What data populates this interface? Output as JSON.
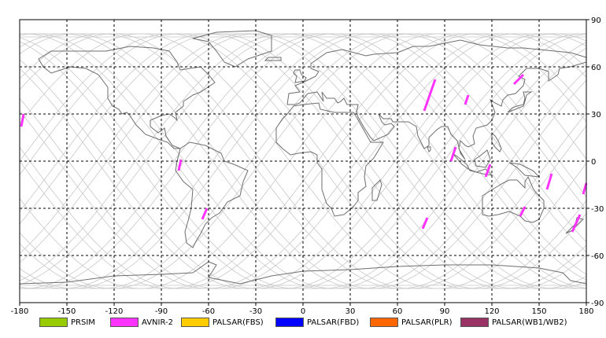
{
  "map": {
    "lon_ticks": [
      "-180",
      "-150",
      "-120",
      "-90",
      "-60",
      "-30",
      "0",
      "30",
      "60",
      "90",
      "120",
      "150",
      "180"
    ],
    "lat_ticks": [
      "90",
      "60",
      "30",
      "0",
      "-30",
      "-60",
      "-90"
    ],
    "grid": true,
    "colors": {
      "coast": "#6e6e6e",
      "orbit": "#c8c8c8",
      "grid": "#000000",
      "frame": "#000000"
    }
  },
  "legend": [
    {
      "label": "PRSIM",
      "color": "#99cc00"
    },
    {
      "label": "AVNIR-2",
      "color": "#ff33ff"
    },
    {
      "label": "PALSAR(FBS)",
      "color": "#ffcc00"
    },
    {
      "label": "PALSAR(FBD)",
      "color": "#0000ff"
    },
    {
      "label": "PALSAR(PLR)",
      "color": "#ff6600"
    },
    {
      "label": "PALSAR(WB1/WB2)",
      "color": "#993366"
    }
  ],
  "observations": {
    "sensor": "AVNIR-2",
    "color": "#ff33ff",
    "strips": [
      {
        "lon1": -179,
        "lat1": 22,
        "lon2": -177.5,
        "lat2": 30
      },
      {
        "lon1": -79,
        "lat1": -6,
        "lon2": -77.5,
        "lat2": 1
      },
      {
        "lon1": -64,
        "lat1": -37,
        "lon2": -61,
        "lat2": -30
      },
      {
        "lon1": 76,
        "lat1": -43,
        "lon2": 79,
        "lat2": -36
      },
      {
        "lon1": 77,
        "lat1": 32,
        "lon2": 84,
        "lat2": 52
      },
      {
        "lon1": 94,
        "lat1": 0,
        "lon2": 97,
        "lat2": 9
      },
      {
        "lon1": 103,
        "lat1": 36,
        "lon2": 105,
        "lat2": 42
      },
      {
        "lon1": 116,
        "lat1": -10,
        "lon2": 119,
        "lat2": -2
      },
      {
        "lon1": 134,
        "lat1": 49,
        "lon2": 140,
        "lat2": 55
      },
      {
        "lon1": 138,
        "lat1": -35,
        "lon2": 141,
        "lat2": -29
      },
      {
        "lon1": 155,
        "lat1": -18,
        "lon2": 158,
        "lat2": -8
      },
      {
        "lon1": 171,
        "lat1": -45,
        "lon2": 176,
        "lat2": -34
      },
      {
        "lon1": 178,
        "lat1": -21,
        "lon2": 180,
        "lat2": -14
      }
    ]
  }
}
